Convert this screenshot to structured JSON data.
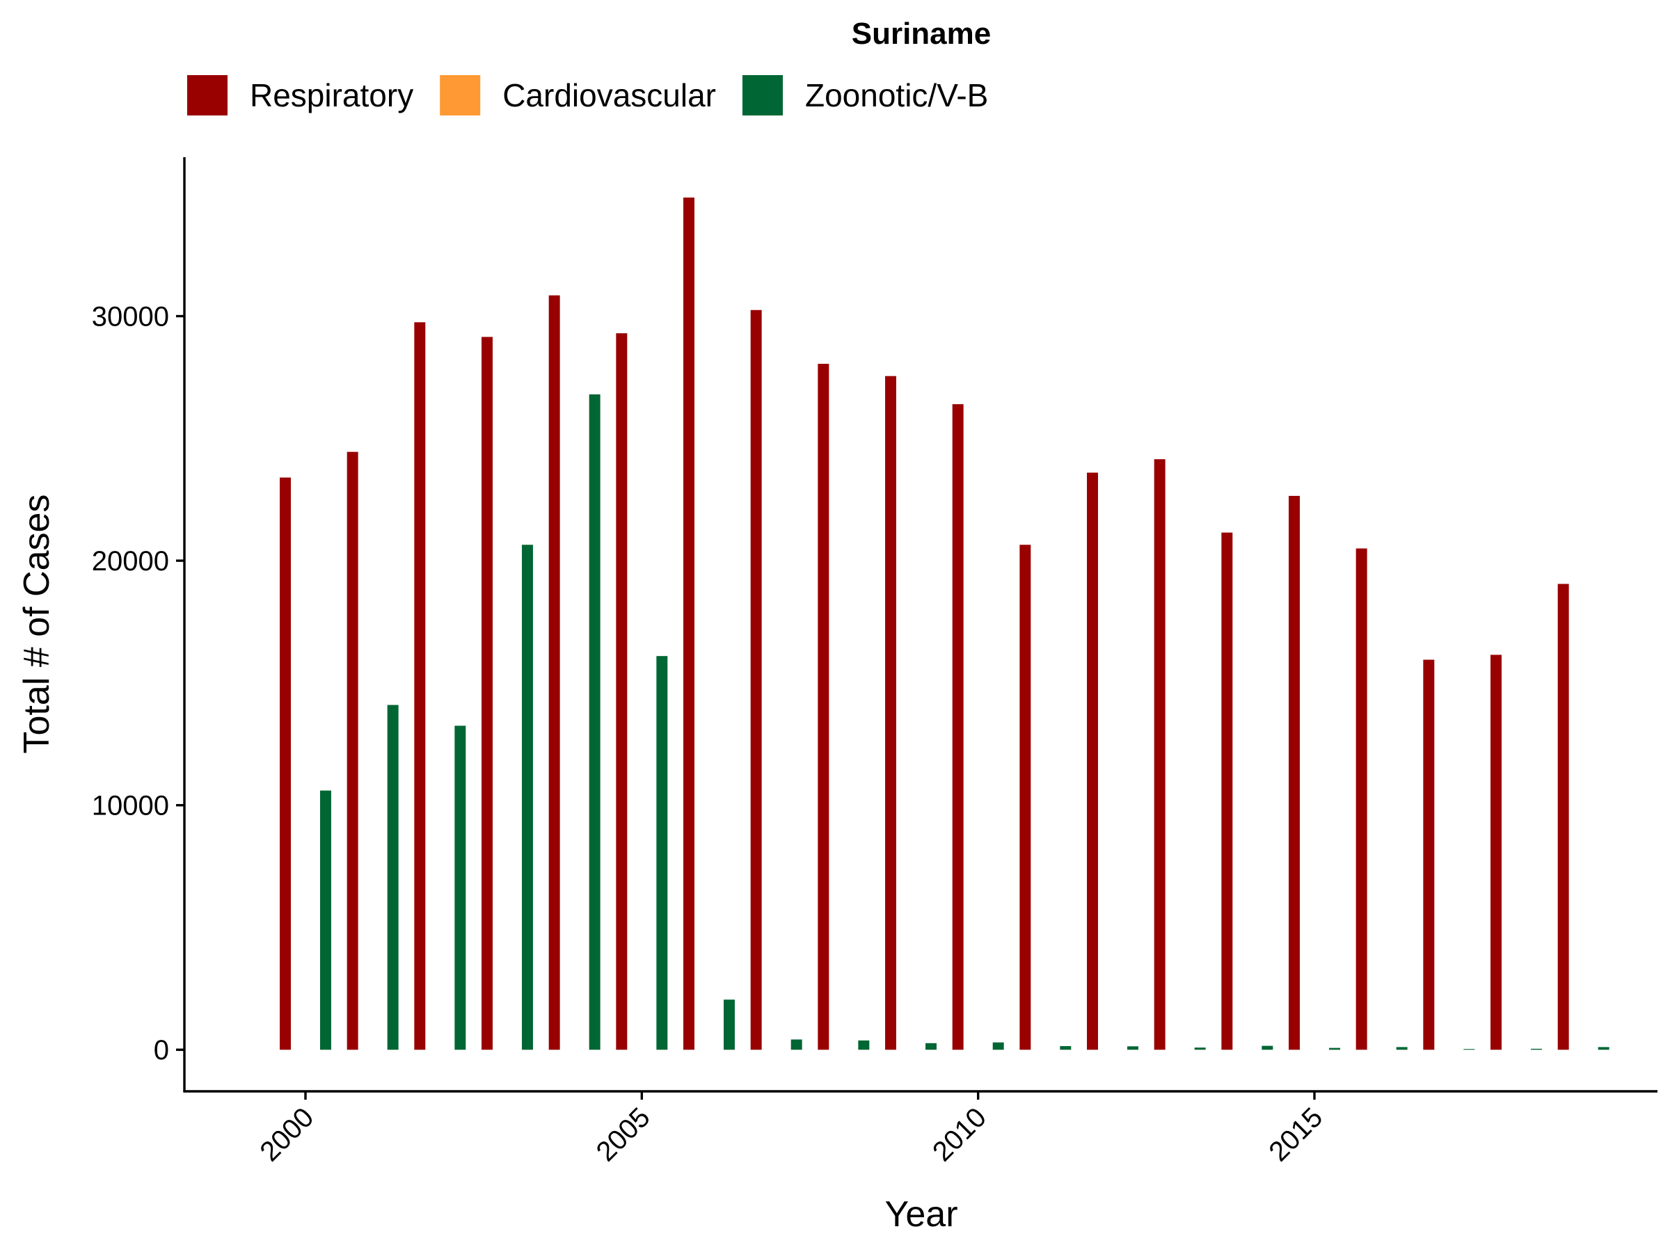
{
  "chart_data": {
    "type": "bar",
    "title": "Suriname",
    "xlabel": "Year",
    "ylabel": "Total # of Cases",
    "legend_position": "top",
    "grid": false,
    "xlim": [
      1998.2,
      2020.1
    ],
    "ylim": [
      -1700,
      36500
    ],
    "x_ticks": [
      2000,
      2005,
      2010,
      2015
    ],
    "y_ticks": [
      0,
      10000,
      20000,
      30000
    ],
    "x_tick_labels": [
      "2000",
      "2005",
      "2010",
      "2015"
    ],
    "y_tick_labels": [
      "0",
      "10000",
      "20000",
      "30000"
    ],
    "x": [
      2000,
      2001,
      2002,
      2003,
      2004,
      2005,
      2006,
      2007,
      2008,
      2009,
      2010,
      2011,
      2012,
      2013,
      2014,
      2015,
      2016,
      2017,
      2018,
      2019
    ],
    "series": [
      {
        "name": "Respiratory",
        "color": "#990000",
        "values": [
          23400,
          24450,
          29750,
          29150,
          30850,
          29300,
          34850,
          30250,
          28050,
          27550,
          26400,
          20650,
          23600,
          24150,
          21150,
          22650,
          20500,
          15950,
          16150,
          19050
        ]
      },
      {
        "name": "Cardiovascular",
        "color": "#FF9933",
        "values": [
          0,
          0,
          0,
          0,
          0,
          0,
          0,
          0,
          0,
          0,
          0,
          0,
          0,
          0,
          0,
          0,
          0,
          0,
          0,
          0
        ]
      },
      {
        "name": "Zoonotic/V-B",
        "color": "#006633",
        "values": [
          10600,
          14100,
          13250,
          20650,
          26800,
          16100,
          2050,
          420,
          380,
          270,
          300,
          150,
          140,
          90,
          160,
          75,
          110,
          30,
          40,
          110
        ]
      }
    ]
  }
}
